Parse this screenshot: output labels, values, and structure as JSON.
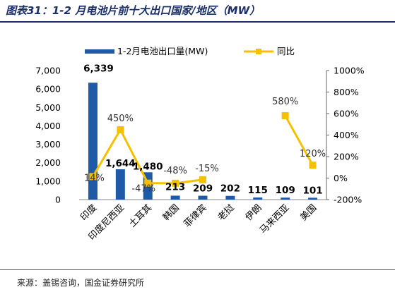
{
  "figure_title": "图表31：1-2 月电池片前十大出口国家/地区（MW）",
  "source": "来源：盖锡咨询，国金证券研究所",
  "colors": {
    "bar": "#1f5aa6",
    "line": "#f5c000",
    "text": "#000000",
    "title": "#1a2f6a"
  },
  "chart_data": {
    "type": "bar",
    "categories": [
      "印度",
      "印度尼西亚",
      "土耳其",
      "韩国",
      "菲律宾",
      "老挝",
      "伊朗",
      "马来西亚",
      "美国"
    ],
    "series": [
      {
        "name": "1-2月电池出口量(MW)",
        "type": "bar",
        "axis": "left",
        "values": [
          6339,
          1644,
          1480,
          213,
          209,
          202,
          115,
          109,
          101
        ],
        "labels": [
          "6,339",
          "1,644",
          "1,480",
          "213",
          "209",
          "202",
          "115",
          "109",
          "101"
        ]
      },
      {
        "name": "同比",
        "type": "line",
        "axis": "right",
        "unit": "%",
        "values": [
          14,
          450,
          -47,
          -48,
          -15,
          null,
          null,
          580,
          120
        ],
        "labels": [
          "14%",
          "450%",
          "-47%",
          "-48%",
          "-15%",
          null,
          null,
          "580%",
          "120%"
        ]
      }
    ],
    "y_left": {
      "min": 0,
      "max": 7000,
      "ticks": [
        "0",
        "1,000",
        "2,000",
        "3,000",
        "4,000",
        "5,000",
        "6,000",
        "7,000"
      ]
    },
    "y_right": {
      "min": -200,
      "max": 1000,
      "ticks": [
        "-200%",
        "0%",
        "200%",
        "400%",
        "600%",
        "800%",
        "1000%"
      ]
    },
    "legend_position": "top",
    "grid": false
  }
}
